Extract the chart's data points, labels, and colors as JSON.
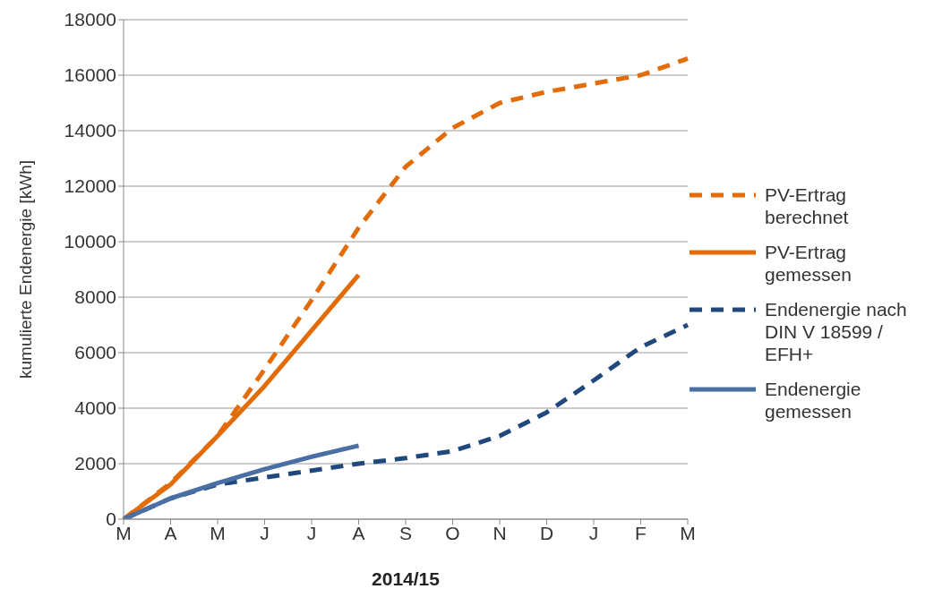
{
  "chart_data": {
    "type": "line",
    "xlabel": "2014/15",
    "ylabel": "kumulierte Endenergie [kWh]",
    "categories": [
      "M",
      "A",
      "M",
      "J",
      "J",
      "A",
      "S",
      "O",
      "N",
      "D",
      "J",
      "F",
      "M"
    ],
    "ylim": [
      0,
      18000
    ],
    "yticks": [
      0,
      2000,
      4000,
      6000,
      8000,
      10000,
      12000,
      14000,
      16000,
      18000
    ],
    "grid": "y",
    "legend": "right",
    "marker": "none",
    "series": [
      {
        "name": "PV-Ertrag berechnet",
        "color": "#e36c0a",
        "line_style": "dashed",
        "values": [
          0,
          1300,
          3000,
          5400,
          7900,
          10500,
          12700,
          14100,
          15000,
          15400,
          15700,
          16000,
          16600
        ]
      },
      {
        "name": "PV-Ertrag gemessen",
        "color": "#e36c0a",
        "line_style": "solid",
        "values": [
          0,
          1250,
          3000,
          4800,
          6800,
          8800,
          null,
          null,
          null,
          null,
          null,
          null,
          null
        ]
      },
      {
        "name": "Endenergie nach DIN V 18599 / EFH+",
        "color": "#1f497d",
        "line_style": "dashed",
        "values": [
          0,
          750,
          1250,
          1500,
          1750,
          2000,
          2200,
          2450,
          3000,
          3850,
          5000,
          6200,
          7000
        ]
      },
      {
        "name": "Endenergie gemessen",
        "color": "#4a6fa5",
        "line_style": "solid",
        "values": [
          0,
          750,
          1300,
          1800,
          2250,
          2650,
          null,
          null,
          null,
          null,
          null,
          null,
          null
        ]
      }
    ]
  }
}
